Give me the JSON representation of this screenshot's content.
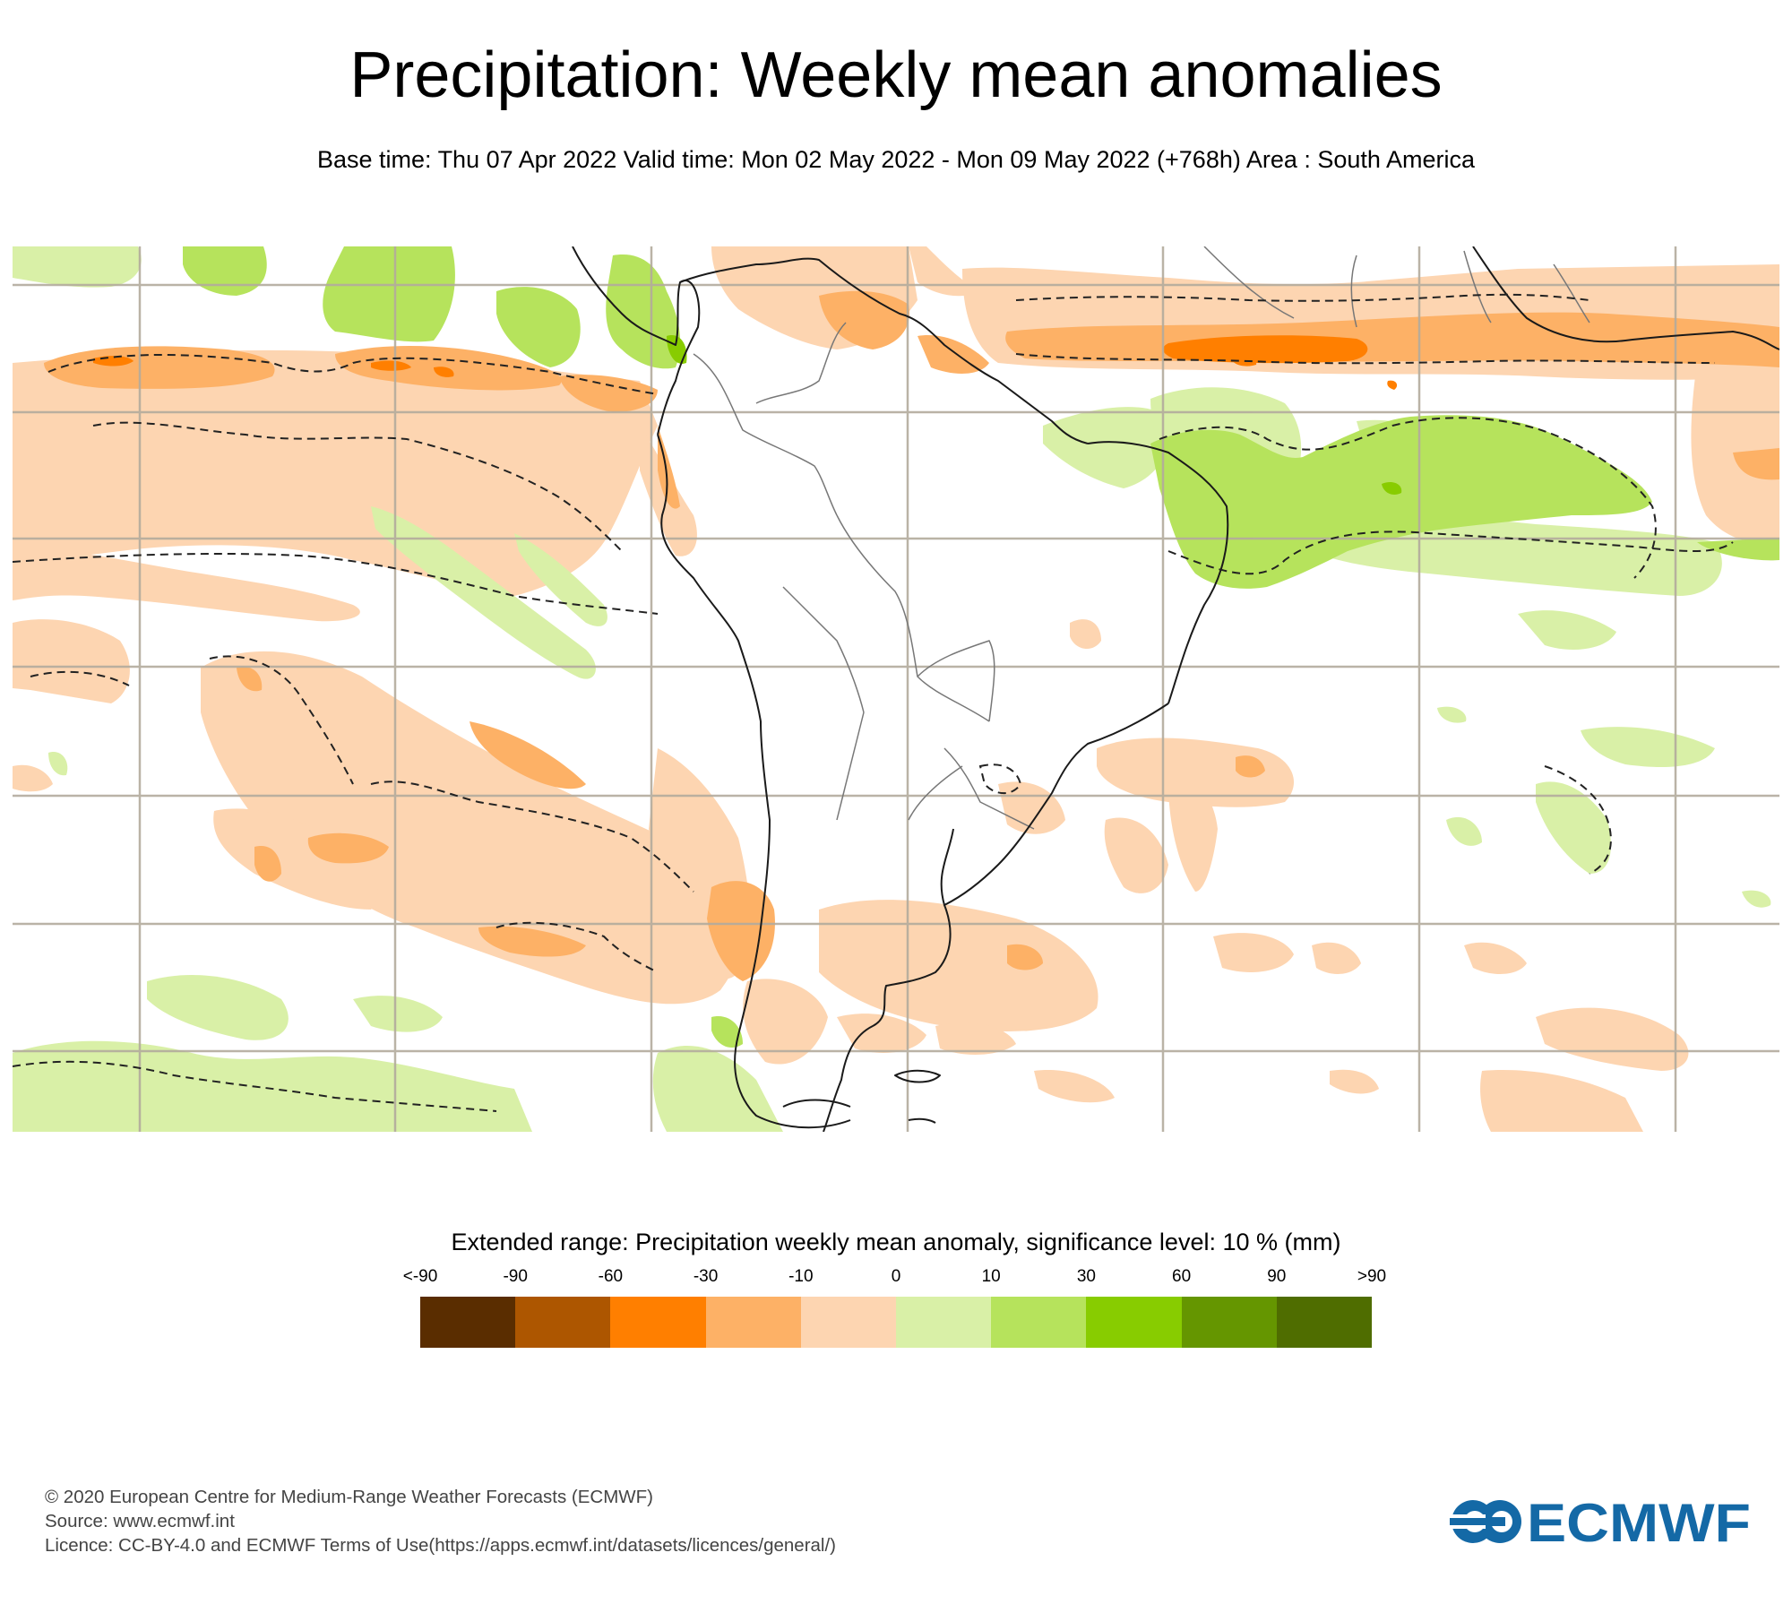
{
  "header": {
    "title": "Precipitation: Weekly mean anomalies",
    "subtitle": "Base time: Thu 07 Apr 2022 Valid time: Mon 02 May 2022 - Mon 09 May 2022 (+768h) Area : South America"
  },
  "map": {
    "area": "South America",
    "variable": "Precipitation weekly mean anomaly",
    "units": "mm",
    "significance_contour": "dashed",
    "grid_color": "#b3ab9d",
    "coast_color": "#222222"
  },
  "legend": {
    "title": "Extended range: Precipitation weekly mean anomaly, significance level: 10 % (mm)",
    "ticks": [
      "<-90",
      "-90",
      "-60",
      "-30",
      "-10",
      "0",
      "10",
      "30",
      "60",
      "90",
      ">90"
    ],
    "bins": [
      {
        "range": "<-90",
        "color": "#5a2d00"
      },
      {
        "range": "-90 to -60",
        "color": "#ad5600"
      },
      {
        "range": "-60 to -30",
        "color": "#ff7f00"
      },
      {
        "range": "-30 to -10",
        "color": "#fdb166"
      },
      {
        "range": "-10 to 0",
        "color": "#fdd5b1"
      },
      {
        "range": "0 to 10",
        "color": "#d9f0a7"
      },
      {
        "range": "10 to 30",
        "color": "#b6e35c"
      },
      {
        "range": "30 to 60",
        "color": "#88cc00"
      },
      {
        "range": "60 to 90",
        "color": "#659600"
      },
      {
        "range": ">90",
        "color": "#4f6d00"
      }
    ]
  },
  "footer": {
    "copyright": "© 2020 European Centre for Medium-Range Weather Forecasts (ECMWF)",
    "source": "Source: www.ecmwf.int",
    "licence": "Licence: CC-BY-4.0 and ECMWF Terms of Use(https://apps.ecmwf.int/datasets/licences/general/)"
  },
  "logo": {
    "text": "ECMWF",
    "color": "#1469a6"
  }
}
